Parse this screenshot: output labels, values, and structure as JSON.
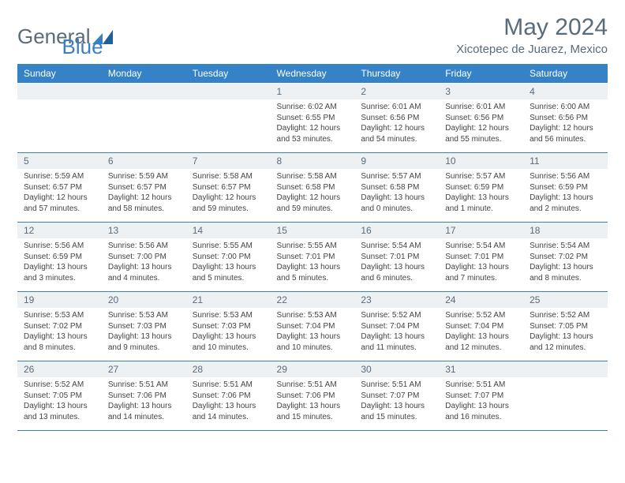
{
  "brand": {
    "part1": "General",
    "part2": "Blue"
  },
  "title": "May 2024",
  "location": "Xicotepec de Juarez, Mexico",
  "colors": {
    "header_bg": "#3583c6",
    "header_text": "#ffffff",
    "daynum_bg": "#eef1f3",
    "text_muted": "#5a6b7a",
    "rule": "#3583c6"
  },
  "days_of_week": [
    "Sunday",
    "Monday",
    "Tuesday",
    "Wednesday",
    "Thursday",
    "Friday",
    "Saturday"
  ],
  "weeks": [
    [
      null,
      null,
      null,
      {
        "n": "1",
        "sr": "Sunrise: 6:02 AM",
        "ss": "Sunset: 6:55 PM",
        "d1": "Daylight: 12 hours",
        "d2": "and 53 minutes."
      },
      {
        "n": "2",
        "sr": "Sunrise: 6:01 AM",
        "ss": "Sunset: 6:56 PM",
        "d1": "Daylight: 12 hours",
        "d2": "and 54 minutes."
      },
      {
        "n": "3",
        "sr": "Sunrise: 6:01 AM",
        "ss": "Sunset: 6:56 PM",
        "d1": "Daylight: 12 hours",
        "d2": "and 55 minutes."
      },
      {
        "n": "4",
        "sr": "Sunrise: 6:00 AM",
        "ss": "Sunset: 6:56 PM",
        "d1": "Daylight: 12 hours",
        "d2": "and 56 minutes."
      }
    ],
    [
      {
        "n": "5",
        "sr": "Sunrise: 5:59 AM",
        "ss": "Sunset: 6:57 PM",
        "d1": "Daylight: 12 hours",
        "d2": "and 57 minutes."
      },
      {
        "n": "6",
        "sr": "Sunrise: 5:59 AM",
        "ss": "Sunset: 6:57 PM",
        "d1": "Daylight: 12 hours",
        "d2": "and 58 minutes."
      },
      {
        "n": "7",
        "sr": "Sunrise: 5:58 AM",
        "ss": "Sunset: 6:57 PM",
        "d1": "Daylight: 12 hours",
        "d2": "and 59 minutes."
      },
      {
        "n": "8",
        "sr": "Sunrise: 5:58 AM",
        "ss": "Sunset: 6:58 PM",
        "d1": "Daylight: 12 hours",
        "d2": "and 59 minutes."
      },
      {
        "n": "9",
        "sr": "Sunrise: 5:57 AM",
        "ss": "Sunset: 6:58 PM",
        "d1": "Daylight: 13 hours",
        "d2": "and 0 minutes."
      },
      {
        "n": "10",
        "sr": "Sunrise: 5:57 AM",
        "ss": "Sunset: 6:59 PM",
        "d1": "Daylight: 13 hours",
        "d2": "and 1 minute."
      },
      {
        "n": "11",
        "sr": "Sunrise: 5:56 AM",
        "ss": "Sunset: 6:59 PM",
        "d1": "Daylight: 13 hours",
        "d2": "and 2 minutes."
      }
    ],
    [
      {
        "n": "12",
        "sr": "Sunrise: 5:56 AM",
        "ss": "Sunset: 6:59 PM",
        "d1": "Daylight: 13 hours",
        "d2": "and 3 minutes."
      },
      {
        "n": "13",
        "sr": "Sunrise: 5:56 AM",
        "ss": "Sunset: 7:00 PM",
        "d1": "Daylight: 13 hours",
        "d2": "and 4 minutes."
      },
      {
        "n": "14",
        "sr": "Sunrise: 5:55 AM",
        "ss": "Sunset: 7:00 PM",
        "d1": "Daylight: 13 hours",
        "d2": "and 5 minutes."
      },
      {
        "n": "15",
        "sr": "Sunrise: 5:55 AM",
        "ss": "Sunset: 7:01 PM",
        "d1": "Daylight: 13 hours",
        "d2": "and 5 minutes."
      },
      {
        "n": "16",
        "sr": "Sunrise: 5:54 AM",
        "ss": "Sunset: 7:01 PM",
        "d1": "Daylight: 13 hours",
        "d2": "and 6 minutes."
      },
      {
        "n": "17",
        "sr": "Sunrise: 5:54 AM",
        "ss": "Sunset: 7:01 PM",
        "d1": "Daylight: 13 hours",
        "d2": "and 7 minutes."
      },
      {
        "n": "18",
        "sr": "Sunrise: 5:54 AM",
        "ss": "Sunset: 7:02 PM",
        "d1": "Daylight: 13 hours",
        "d2": "and 8 minutes."
      }
    ],
    [
      {
        "n": "19",
        "sr": "Sunrise: 5:53 AM",
        "ss": "Sunset: 7:02 PM",
        "d1": "Daylight: 13 hours",
        "d2": "and 8 minutes."
      },
      {
        "n": "20",
        "sr": "Sunrise: 5:53 AM",
        "ss": "Sunset: 7:03 PM",
        "d1": "Daylight: 13 hours",
        "d2": "and 9 minutes."
      },
      {
        "n": "21",
        "sr": "Sunrise: 5:53 AM",
        "ss": "Sunset: 7:03 PM",
        "d1": "Daylight: 13 hours",
        "d2": "and 10 minutes."
      },
      {
        "n": "22",
        "sr": "Sunrise: 5:53 AM",
        "ss": "Sunset: 7:04 PM",
        "d1": "Daylight: 13 hours",
        "d2": "and 10 minutes."
      },
      {
        "n": "23",
        "sr": "Sunrise: 5:52 AM",
        "ss": "Sunset: 7:04 PM",
        "d1": "Daylight: 13 hours",
        "d2": "and 11 minutes."
      },
      {
        "n": "24",
        "sr": "Sunrise: 5:52 AM",
        "ss": "Sunset: 7:04 PM",
        "d1": "Daylight: 13 hours",
        "d2": "and 12 minutes."
      },
      {
        "n": "25",
        "sr": "Sunrise: 5:52 AM",
        "ss": "Sunset: 7:05 PM",
        "d1": "Daylight: 13 hours",
        "d2": "and 12 minutes."
      }
    ],
    [
      {
        "n": "26",
        "sr": "Sunrise: 5:52 AM",
        "ss": "Sunset: 7:05 PM",
        "d1": "Daylight: 13 hours",
        "d2": "and 13 minutes."
      },
      {
        "n": "27",
        "sr": "Sunrise: 5:51 AM",
        "ss": "Sunset: 7:06 PM",
        "d1": "Daylight: 13 hours",
        "d2": "and 14 minutes."
      },
      {
        "n": "28",
        "sr": "Sunrise: 5:51 AM",
        "ss": "Sunset: 7:06 PM",
        "d1": "Daylight: 13 hours",
        "d2": "and 14 minutes."
      },
      {
        "n": "29",
        "sr": "Sunrise: 5:51 AM",
        "ss": "Sunset: 7:06 PM",
        "d1": "Daylight: 13 hours",
        "d2": "and 15 minutes."
      },
      {
        "n": "30",
        "sr": "Sunrise: 5:51 AM",
        "ss": "Sunset: 7:07 PM",
        "d1": "Daylight: 13 hours",
        "d2": "and 15 minutes."
      },
      {
        "n": "31",
        "sr": "Sunrise: 5:51 AM",
        "ss": "Sunset: 7:07 PM",
        "d1": "Daylight: 13 hours",
        "d2": "and 16 minutes."
      },
      null
    ]
  ]
}
